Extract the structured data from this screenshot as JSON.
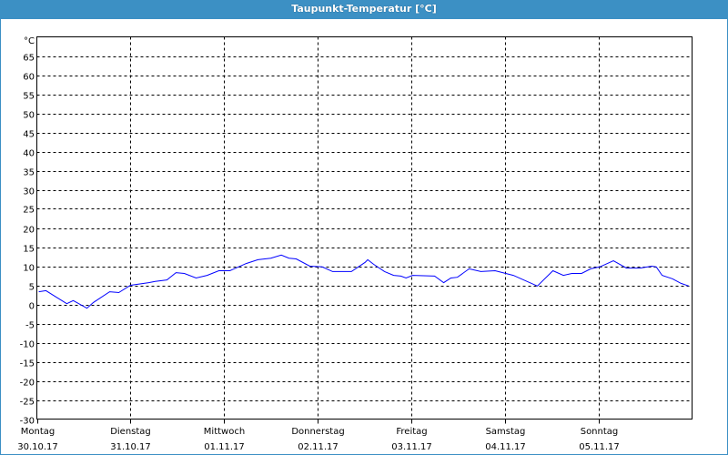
{
  "window": {
    "title": "Taupunkt-Temperatur [°C]"
  },
  "chart_data": {
    "type": "line",
    "title": "Taupunkt-Temperatur [°C]",
    "ylabel": "°C",
    "ylim": [
      -30,
      70
    ],
    "yticks": [
      65,
      60,
      55,
      50,
      45,
      40,
      35,
      30,
      25,
      20,
      15,
      10,
      5,
      0,
      -5,
      -10,
      -15,
      -20,
      -25,
      -30
    ],
    "xlim": [
      "30.10.17 00:00",
      "06.11.17 00:00"
    ],
    "grid": true,
    "line_color": "#0000ff",
    "xticks": [
      {
        "day": "Montag",
        "date": "30.10.17"
      },
      {
        "day": "Dienstag",
        "date": "31.10.17"
      },
      {
        "day": "Mittwoch",
        "date": "01.11.17"
      },
      {
        "day": "Donnerstag",
        "date": "02.11.17"
      },
      {
        "day": "Freitag",
        "date": "03.11.17"
      },
      {
        "day": "Samstag",
        "date": "04.11.17"
      },
      {
        "day": "Sonntag",
        "date": "05.11.17"
      }
    ],
    "series": [
      {
        "points": [
          [
            "30.10.17 00:30",
            3.3
          ],
          [
            "30.10.17 02:20",
            3.6
          ],
          [
            "30.10.17 04:40",
            2.1
          ],
          [
            "30.10.17 07:40",
            0.2
          ],
          [
            "30.10.17 09:20",
            1.0
          ],
          [
            "30.10.17 12:50",
            -1.0
          ],
          [
            "30.10.17 14:30",
            0.5
          ],
          [
            "30.10.17 18:40",
            3.3
          ],
          [
            "30.10.17 21:00",
            3.1
          ],
          [
            "31.10.17 00:00",
            5.0
          ],
          [
            "31.10.17 04:40",
            5.7
          ],
          [
            "31.10.17 06:20",
            6.0
          ],
          [
            "31.10.17 09:20",
            6.4
          ],
          [
            "31.10.17 11:40",
            8.3
          ],
          [
            "31.10.17 13:50",
            8.1
          ],
          [
            "31.10.17 16:50",
            6.9
          ],
          [
            "31.10.17 19:40",
            7.6
          ],
          [
            "31.10.17 22:40",
            8.8
          ],
          [
            "01.11.17 01:30",
            8.8
          ],
          [
            "01.11.17 05:40",
            10.7
          ],
          [
            "01.11.17 08:40",
            11.7
          ],
          [
            "01.11.17 12:00",
            12.1
          ],
          [
            "01.11.17 14:40",
            12.9
          ],
          [
            "01.11.17 16:40",
            12.1
          ],
          [
            "01.11.17 18:30",
            11.9
          ],
          [
            "01.11.17 22:00",
            10.0
          ],
          [
            "02.11.17 01:10",
            9.8
          ],
          [
            "02.11.17 03:50",
            8.6
          ],
          [
            "02.11.17 08:40",
            8.6
          ],
          [
            "02.11.17 12:10",
            11.0
          ],
          [
            "02.11.17 12:50",
            11.7
          ],
          [
            "02.11.17 14:20",
            10.5
          ],
          [
            "02.11.17 17:10",
            8.6
          ],
          [
            "02.11.17 19:30",
            7.6
          ],
          [
            "02.11.17 21:20",
            7.4
          ],
          [
            "02.11.17 22:40",
            6.9
          ],
          [
            "03.11.17 00:20",
            7.6
          ],
          [
            "03.11.17 06:00",
            7.4
          ],
          [
            "03.11.17 08:20",
            5.7
          ],
          [
            "03.11.17 10:10",
            6.9
          ],
          [
            "03.11.17 11:50",
            7.1
          ],
          [
            "03.11.17 14:50",
            9.3
          ],
          [
            "03.11.17 17:50",
            8.6
          ],
          [
            "03.11.17 21:30",
            8.8
          ],
          [
            "04.11.17 02:10",
            7.6
          ],
          [
            "04.11.17 08:20",
            4.8
          ],
          [
            "04.11.17 12:20",
            8.8
          ],
          [
            "04.11.17 15:00",
            7.6
          ],
          [
            "04.11.17 17:10",
            8.1
          ],
          [
            "04.11.17 19:40",
            8.1
          ],
          [
            "04.11.17 22:00",
            9.3
          ],
          [
            "05.11.17 00:20",
            9.8
          ],
          [
            "05.11.17 03:50",
            11.4
          ],
          [
            "05.11.17 07:10",
            9.5
          ],
          [
            "05.11.17 10:40",
            9.5
          ],
          [
            "05.11.17 13:40",
            10.0
          ],
          [
            "05.11.17 14:50",
            9.8
          ],
          [
            "05.11.17 16:20",
            7.6
          ],
          [
            "05.11.17 19:00",
            6.7
          ],
          [
            "05.11.17 21:10",
            5.5
          ],
          [
            "05.11.17 23:10",
            4.8
          ]
        ]
      }
    ]
  }
}
